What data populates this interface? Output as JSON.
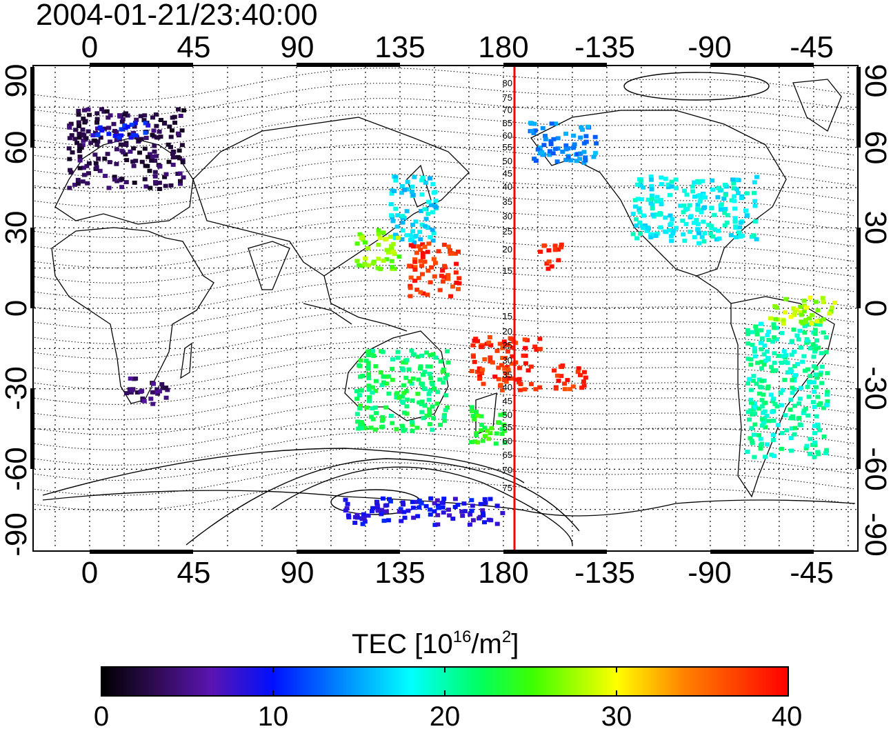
{
  "title": "2004-01-21/23:40:00",
  "map": {
    "top_lon_labels": [
      "0",
      "45",
      "90",
      "135",
      "180",
      "-135",
      "-90",
      "-45"
    ],
    "bottom_lon_labels": [
      "0",
      "45",
      "90",
      "135",
      "180",
      "-135",
      "-90",
      "-45"
    ],
    "left_lat_labels": [
      "90",
      "60",
      "30",
      "0",
      "-30",
      "-60",
      "-90"
    ],
    "right_lat_labels": [
      "90",
      "60",
      "30",
      "0",
      "-30",
      "-60",
      "-90"
    ],
    "meridian_line_color": "#ff0000",
    "meridian_labels": [
      "80",
      "75",
      "70",
      "65",
      "60",
      "55",
      "50",
      "45",
      "40",
      "35",
      "30",
      "25",
      "20",
      "15",
      "15",
      "20",
      "25",
      "30",
      "35",
      "40",
      "45",
      "50",
      "55",
      "60",
      "65",
      "70",
      "75"
    ]
  },
  "colorbar": {
    "label_main": "TEC  [10",
    "label_sup1": "16",
    "label_mid": "/m",
    "label_sup2": "2",
    "label_end": "]",
    "tick_labels": [
      "0",
      "10",
      "20",
      "30",
      "40"
    ],
    "min": 0,
    "max": 40
  },
  "chart_data": {
    "type": "heatmap",
    "title": "2004-01-21/23:40:00",
    "colorbar_label": "TEC  [10^16/m^2]",
    "colorbar_range": [
      0,
      40
    ],
    "lon_ticks": [
      0,
      45,
      90,
      135,
      180,
      -135,
      -90,
      -45
    ],
    "lat_ticks": [
      90,
      60,
      30,
      0,
      -30,
      -60,
      -90
    ],
    "regions": [
      {
        "lon_range": [
          -10,
          40
        ],
        "lat_range": [
          45,
          75
        ],
        "tec": 3
      },
      {
        "lon_range": [
          0,
          25
        ],
        "lat_range": [
          64,
          70
        ],
        "tec": 10
      },
      {
        "lon_range": [
          130,
          150
        ],
        "lat_range": [
          25,
          50
        ],
        "tec": 17
      },
      {
        "lon_range": [
          115,
          135
        ],
        "lat_range": [
          15,
          30
        ],
        "tec": 27
      },
      {
        "lon_range": [
          138,
          160
        ],
        "lat_range": [
          5,
          25
        ],
        "tec": 38
      },
      {
        "lon_range": [
          165,
          195
        ],
        "lat_range": [
          -30,
          -10
        ],
        "tec": 38
      },
      {
        "lon_range": [
          200,
          215
        ],
        "lat_range": [
          -30,
          -20
        ],
        "tec": 38
      },
      {
        "lon_range": [
          195,
          205
        ],
        "lat_range": [
          15,
          25
        ],
        "tec": 38
      },
      {
        "lon_range": [
          115,
          155
        ],
        "lat_range": [
          -45,
          -15
        ],
        "tec": 22
      },
      {
        "lon_range": [
          165,
          180
        ],
        "lat_range": [
          -50,
          -35
        ],
        "tec": 24
      },
      {
        "lon_range": [
          -125,
          -70
        ],
        "lat_range": [
          25,
          50
        ],
        "tec": 18
      },
      {
        "lon_range": [
          -170,
          -140
        ],
        "lat_range": [
          55,
          70
        ],
        "tec": 14
      },
      {
        "lon_range": [
          -75,
          -40
        ],
        "lat_range": [
          -55,
          -5
        ],
        "tec": 20
      },
      {
        "lon_range": [
          -65,
          -35
        ],
        "lat_range": [
          -5,
          5
        ],
        "tec": 28
      },
      {
        "lon_range": [
          15,
          35
        ],
        "lat_range": [
          -35,
          -25
        ],
        "tec": 4
      },
      {
        "lon_range": [
          110,
          180
        ],
        "lat_range": [
          -80,
          -70
        ],
        "tec": 9
      }
    ]
  }
}
